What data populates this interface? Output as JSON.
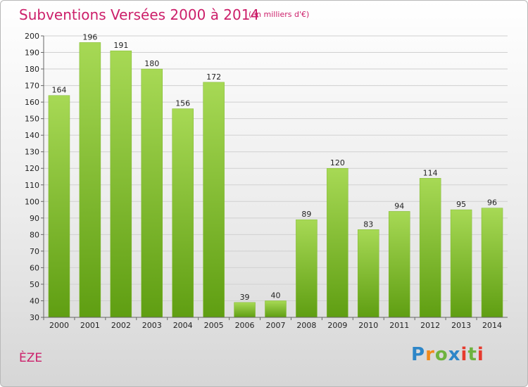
{
  "header": {
    "title": "Subventions Versées 2000 à 2014",
    "subtitle": "(en milliers d'€)"
  },
  "footer": {
    "commune": "ÈZE",
    "logo": "Proxiti"
  },
  "colors": {
    "bar_top": "#a7d955",
    "bar_bottom": "#5f9e12",
    "title": "#cc1f6a"
  },
  "chart_data": {
    "type": "bar",
    "categories": [
      "2000",
      "2001",
      "2002",
      "2003",
      "2004",
      "2005",
      "2006",
      "2007",
      "2008",
      "2009",
      "2010",
      "2011",
      "2012",
      "2013",
      "2014"
    ],
    "values": [
      164,
      196,
      191,
      180,
      156,
      172,
      39,
      40,
      89,
      120,
      83,
      94,
      114,
      95,
      96
    ],
    "title": "Subventions Versées 2000 à 2014",
    "subtitle": "(en milliers d'€)",
    "xlabel": "",
    "ylabel": "",
    "ylim": [
      30,
      200
    ],
    "yticks": [
      30,
      40,
      50,
      60,
      70,
      80,
      90,
      100,
      110,
      120,
      130,
      140,
      150,
      160,
      170,
      180,
      190,
      200
    ],
    "grid": true,
    "data_labels": true
  }
}
